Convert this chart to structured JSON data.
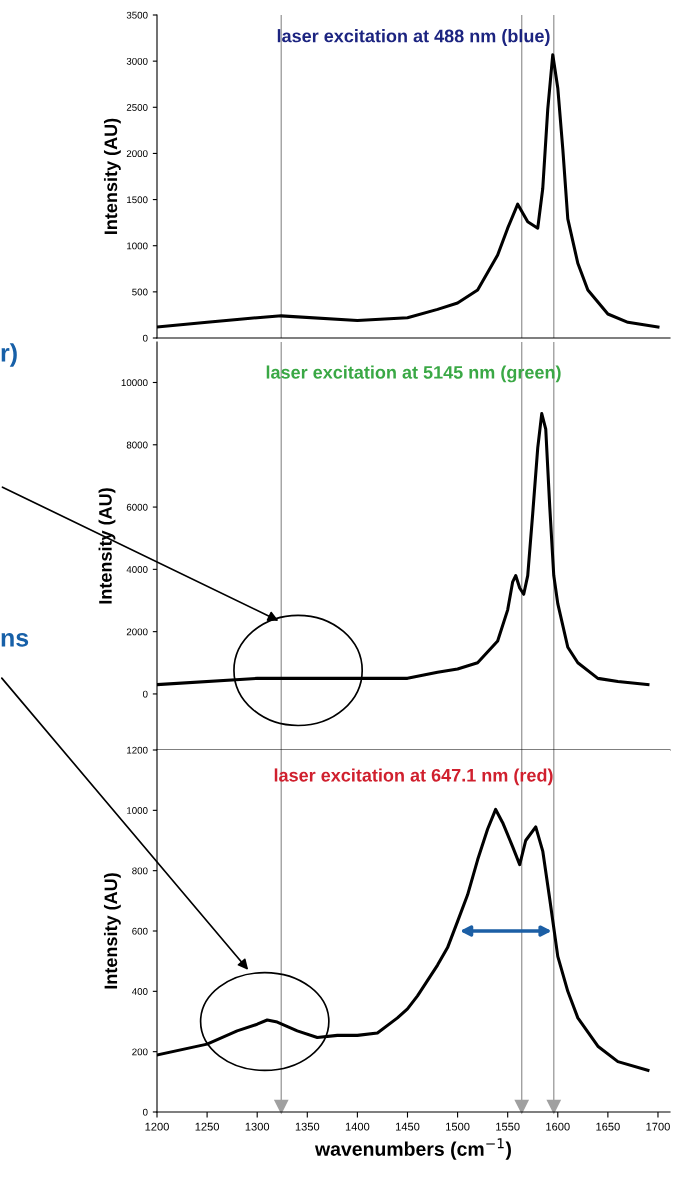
{
  "chart_data": [
    {
      "type": "line",
      "title": "laser excitation at 488 nm (blue)",
      "ylabel": "Intensity (AU)",
      "xlim": [
        1200,
        1712
      ],
      "ylim": [
        0,
        3500
      ],
      "yticks": [
        0,
        500,
        1000,
        1500,
        2000,
        2500,
        3000,
        3500
      ],
      "tick_labels": "y",
      "grid": false,
      "legend": false,
      "ref_lines": [
        {
          "axis": "x",
          "value": 1324,
          "color": "#a0a0a0"
        },
        {
          "axis": "x",
          "value": 1564,
          "color": "#a0a0a0"
        },
        {
          "axis": "x",
          "value": 1596,
          "color": "#a0a0a0"
        }
      ],
      "series": [
        {
          "color": "#000000",
          "x": [
            1200,
            1250,
            1280,
            1300,
            1324,
            1400,
            1450,
            1480,
            1500,
            1520,
            1540,
            1550,
            1560,
            1570,
            1580,
            1585,
            1590,
            1595,
            1600,
            1605,
            1610,
            1620,
            1630,
            1650,
            1670,
            1700
          ],
          "values": [
            120,
            170,
            200,
            220,
            240,
            190,
            220,
            310,
            380,
            520,
            900,
            1190,
            1450,
            1260,
            1190,
            1620,
            2480,
            3070,
            2710,
            2050,
            1290,
            810,
            520,
            260,
            170,
            120
          ]
        }
      ]
    },
    {
      "type": "line",
      "title": "laser excitation at 5145 nm (green)",
      "ylabel": "Intensity (AU)",
      "xlim": [
        1200,
        1712
      ],
      "ylim": [
        -1800,
        11300
      ],
      "yticks": [
        0,
        2000,
        4000,
        6000,
        8000,
        10000
      ],
      "tick_labels": "y",
      "grid": false,
      "legend": false,
      "ref_lines": [
        {
          "axis": "x",
          "value": 1324,
          "color": "#a0a0a0"
        },
        {
          "axis": "x",
          "value": 1564,
          "color": "#a0a0a0"
        },
        {
          "axis": "x",
          "value": 1596,
          "color": "#a0a0a0"
        }
      ],
      "series": [
        {
          "color": "#000000",
          "x": [
            1200,
            1300,
            1350,
            1400,
            1450,
            1480,
            1500,
            1520,
            1540,
            1550,
            1555,
            1558,
            1562,
            1566,
            1570,
            1575,
            1580,
            1584,
            1588,
            1592,
            1596,
            1600,
            1610,
            1620,
            1640,
            1660,
            1690
          ],
          "values": [
            300,
            500,
            500,
            500,
            500,
            700,
            800,
            1000,
            1700,
            2700,
            3600,
            3800,
            3400,
            3200,
            3800,
            5800,
            7900,
            9000,
            8500,
            6000,
            3800,
            2900,
            1500,
            1000,
            500,
            400,
            300
          ]
        }
      ]
    },
    {
      "type": "line",
      "title": "laser excitation at 647.1 nm (red)",
      "ylabel": "Intensity (AU)",
      "xlabel": "wavenumbers (cm$^{−1}$)",
      "xlim": [
        1200,
        1712
      ],
      "xticks": [
        1200,
        1250,
        1300,
        1350,
        1400,
        1450,
        1500,
        1550,
        1600,
        1650,
        1700
      ],
      "ylim": [
        0,
        1200
      ],
      "yticks": [
        0,
        200,
        400,
        600,
        800,
        1000,
        1200
      ],
      "grid": false,
      "legend": false,
      "ref_lines": [
        {
          "axis": "x",
          "value": 1324,
          "color": "#a0a0a0"
        },
        {
          "axis": "x",
          "value": 1564,
          "color": "#a0a0a0"
        },
        {
          "axis": "x",
          "value": 1596,
          "color": "#a0a0a0"
        }
      ],
      "annotations": [
        "r)",
        "ns"
      ],
      "series": [
        {
          "color": "#000000",
          "x": [
            1200,
            1250,
            1280,
            1300,
            1310,
            1320,
            1340,
            1360,
            1380,
            1400,
            1420,
            1440,
            1450,
            1460,
            1480,
            1490,
            1500,
            1510,
            1520,
            1530,
            1538,
            1545,
            1555,
            1562,
            1568,
            1578,
            1585,
            1592,
            1600,
            1610,
            1620,
            1640,
            1660,
            1690
          ],
          "values": [
            189,
            225,
            269,
            291,
            305,
            298,
            269,
            247,
            254,
            254,
            262,
            312,
            342,
            385,
            487,
            545,
            632,
            720,
            836,
            938,
            1003,
            959,
            879,
            820,
            900,
            945,
            865,
            705,
            516,
            400,
            312,
            218,
            167,
            138
          ]
        }
      ]
    }
  ]
}
